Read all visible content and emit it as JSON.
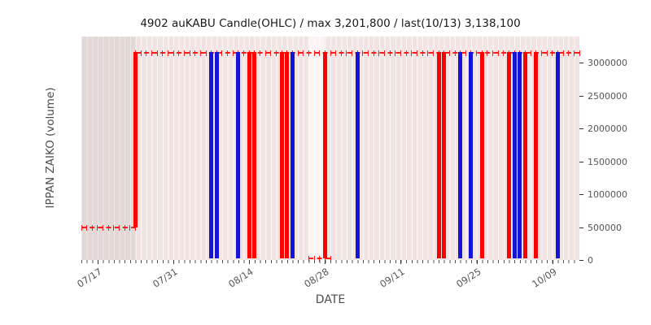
{
  "chart_data": {
    "type": "candlestick",
    "title": "4902 auKABU Candle(OHLC) / max 3,201,800 / last(10/13) 3,138,100",
    "xlabel": "DATE",
    "ylabel": "IPPAN ZAIKO (volume)",
    "max": 3201800,
    "last": {
      "date": "10/13",
      "value": 3138100
    },
    "axis": {
      "start_date": "07/14",
      "day_span": 92,
      "ymax": 3400000,
      "grid": "vertical-daily-white-dotted",
      "x_ticks": [
        {
          "day": 3,
          "label": "07/17"
        },
        {
          "day": 17,
          "label": "07/31"
        },
        {
          "day": 31,
          "label": "08/14"
        },
        {
          "day": 45,
          "label": "08/28"
        },
        {
          "day": 59,
          "label": "09/11"
        },
        {
          "day": 73,
          "label": "09/25"
        },
        {
          "day": 87,
          "label": "10/09"
        }
      ],
      "y_ticks": [
        {
          "value": 0,
          "label": "0"
        },
        {
          "value": 500000,
          "label": "500000"
        },
        {
          "value": 1000000,
          "label": "1000000"
        },
        {
          "value": 1500000,
          "label": "1500000"
        },
        {
          "value": 2000000,
          "label": "2000000"
        },
        {
          "value": 2500000,
          "label": "2500000"
        },
        {
          "value": 3000000,
          "label": "3000000"
        }
      ]
    },
    "colors": {
      "up": "#ff0000",
      "down": "#1414d8",
      "dash": "#ff1a1a",
      "plot_bg": "#f2e4e2"
    },
    "bands": [
      {
        "start_day": 0,
        "end_day": 10,
        "color": "rgba(160,160,160,0.18)"
      },
      {
        "start_day": 42,
        "end_day": 45,
        "color": "rgba(255,255,255,0.55)"
      }
    ],
    "dash_segments": [
      {
        "start_day": 0,
        "end_day": 10,
        "value": 500000
      },
      {
        "start_day": 10,
        "end_day": 92,
        "value": 3150000
      },
      {
        "start_day": 42,
        "end_day": 46,
        "value": 30000
      }
    ],
    "candles": [
      {
        "date": "07/24",
        "day": 10,
        "dir": "up",
        "low": 500000,
        "high": 3170000
      },
      {
        "date": "08/07",
        "day": 24,
        "dir": "down",
        "low": 30000,
        "high": 3170000
      },
      {
        "date": "08/08",
        "day": 25,
        "dir": "down",
        "low": 30000,
        "high": 3170000
      },
      {
        "date": "08/12",
        "day": 29,
        "dir": "down",
        "low": 30000,
        "high": 3170000
      },
      {
        "date": "08/14",
        "day": 31,
        "dir": "up",
        "low": 30000,
        "high": 3170000
      },
      {
        "date": "08/15",
        "day": 32,
        "dir": "up",
        "low": 30000,
        "high": 3170000
      },
      {
        "date": "08/20",
        "day": 37,
        "dir": "up",
        "low": 30000,
        "high": 3170000
      },
      {
        "date": "08/21",
        "day": 38,
        "dir": "up",
        "low": 30000,
        "high": 3170000
      },
      {
        "date": "08/22",
        "day": 39,
        "dir": "down",
        "low": 30000,
        "high": 3170000
      },
      {
        "date": "08/28",
        "day": 45,
        "dir": "up",
        "low": 30000,
        "high": 3170000
      },
      {
        "date": "09/03",
        "day": 51,
        "dir": "down",
        "low": 30000,
        "high": 3170000
      },
      {
        "date": "09/18",
        "day": 66,
        "dir": "up",
        "low": 30000,
        "high": 3170000
      },
      {
        "date": "09/19",
        "day": 67,
        "dir": "up",
        "low": 30000,
        "high": 3170000
      },
      {
        "date": "09/22",
        "day": 70,
        "dir": "down",
        "low": 30000,
        "high": 3170000
      },
      {
        "date": "09/24",
        "day": 72,
        "dir": "down",
        "low": 30000,
        "high": 3170000
      },
      {
        "date": "09/26",
        "day": 74,
        "dir": "up",
        "low": 30000,
        "high": 3170000
      },
      {
        "date": "10/01",
        "day": 79,
        "dir": "up",
        "low": 30000,
        "high": 3170000
      },
      {
        "date": "10/02",
        "day": 80,
        "dir": "down",
        "low": 30000,
        "high": 3170000
      },
      {
        "date": "10/03",
        "day": 81,
        "dir": "down",
        "low": 30000,
        "high": 3170000
      },
      {
        "date": "10/04",
        "day": 82,
        "dir": "up",
        "low": 30000,
        "high": 3170000
      },
      {
        "date": "10/06",
        "day": 84,
        "dir": "up",
        "low": 30000,
        "high": 3170000
      },
      {
        "date": "10/10",
        "day": 88,
        "dir": "down",
        "low": 30000,
        "high": 3170000
      }
    ]
  }
}
